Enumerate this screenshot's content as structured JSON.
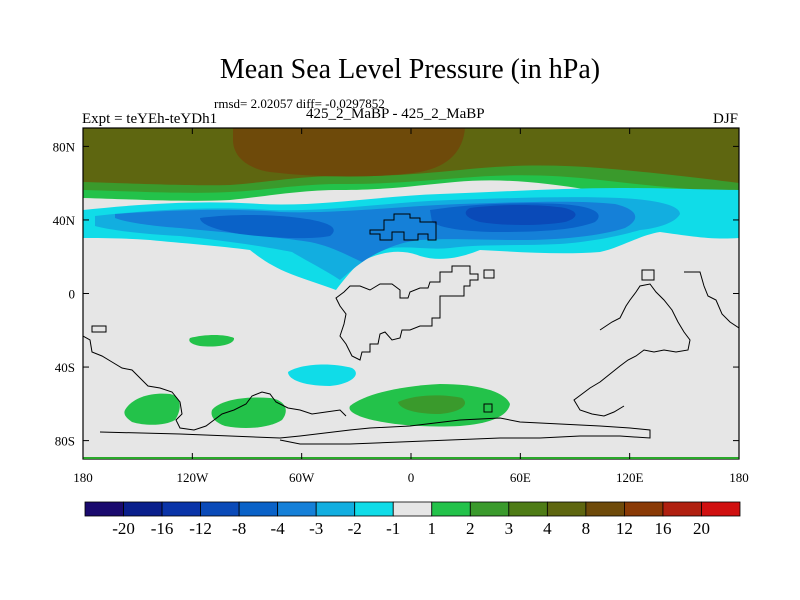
{
  "chart_data": {
    "type": "heatmap",
    "title": "Mean Sea Level Pressure (in hPa)",
    "stats": "rmsd= 2.02057 diff= -0.0297852",
    "left_string": "Expt = teYEh-teYDh1",
    "center_string": "425_2_MaBP - 425_2_MaBP",
    "right_string": "DJF",
    "x_ticks": [
      "180",
      "120W",
      "60W",
      "0",
      "60E",
      "120E",
      "180"
    ],
    "y_ticks": [
      "80N",
      "40N",
      "0",
      "40S",
      "80S"
    ],
    "lon_range": [
      -180,
      180
    ],
    "lat_range": [
      -90,
      90
    ],
    "colorbar": {
      "labels": [
        "-20",
        "-16",
        "-12",
        "-8",
        "-4",
        "-3",
        "-2",
        "-1",
        "1",
        "2",
        "3",
        "4",
        "8",
        "12",
        "16",
        "20"
      ],
      "colors": [
        "#1a0a6e",
        "#0a1f8c",
        "#0a34a8",
        "#0a4ab8",
        "#0a62c8",
        "#1580d8",
        "#12aee0",
        "#10dce8",
        "#e6e6e6",
        "#23c24a",
        "#3a9a2c",
        "#4e7c16",
        "#5e6610",
        "#6e4a0a",
        "#8a3a06",
        "#b02010",
        "#d01010"
      ]
    },
    "regions": [
      {
        "name": "arctic-high",
        "level": "12",
        "color": "#6e4a0a"
      },
      {
        "name": "northern-brown-band",
        "level": "8",
        "color": "#5e6610"
      },
      {
        "name": "midlat-low-core",
        "level": "-4",
        "color": "#0a62c8"
      },
      {
        "name": "southern-ocean-high",
        "level": "2",
        "color": "#23c24a"
      }
    ]
  }
}
